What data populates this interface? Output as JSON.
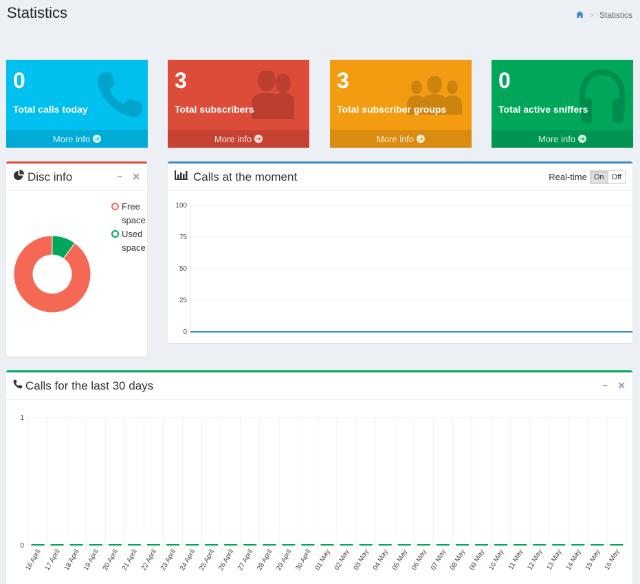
{
  "header": {
    "title": "Statistics",
    "breadcrumb": "Statistics"
  },
  "stat_boxes": [
    {
      "value": "0",
      "label": "Total calls today",
      "more": "More info",
      "color": "#00c0ef",
      "icon": "phone-icon"
    },
    {
      "value": "3",
      "label": "Total subscribers",
      "more": "More info",
      "color": "#dd4b39",
      "icon": "users-icon"
    },
    {
      "value": "3",
      "label": "Total subscriber groups",
      "more": "More info",
      "color": "#f39c12",
      "icon": "groups-icon"
    },
    {
      "value": "0",
      "label": "Total active sniffers",
      "more": "More info",
      "color": "#00a65a",
      "icon": "headphones-icon"
    }
  ],
  "disc": {
    "title": "Disc info",
    "legend": [
      {
        "label": "Free space",
        "color": "#f56954"
      },
      {
        "label": "Used space",
        "color": "#00a65a"
      }
    ],
    "free_pct": 90,
    "used_pct": 10
  },
  "realtime": {
    "title": "Calls at the moment",
    "toggle_label": "Real-time",
    "on": "On",
    "off": "Off"
  },
  "monthly": {
    "title": "Calls for the last 30 days"
  },
  "chart_data": [
    {
      "type": "line",
      "title": "Calls at the moment",
      "ylim": [
        0,
        100
      ],
      "yticks": [
        "100",
        "75",
        "50",
        "25",
        "0"
      ],
      "values": [
        0,
        0
      ],
      "color": "#3c8dbc"
    },
    {
      "type": "bar",
      "title": "Calls for the last 30 days",
      "ylim": [
        0,
        1
      ],
      "yticks": [
        "1",
        "0"
      ],
      "categories": [
        "16 April",
        "17 April",
        "18 April",
        "19 April",
        "20 April",
        "21 April",
        "22 April",
        "23 April",
        "24 April",
        "25 April",
        "26 April",
        "27 April",
        "28 April",
        "29 April",
        "30 April",
        "01 May",
        "02 May",
        "03 May",
        "04 May",
        "05 May",
        "06 May",
        "07 May",
        "08 May",
        "09 May",
        "10 May",
        "11 May",
        "12 May",
        "13 May",
        "14 May",
        "15 May",
        "16 May"
      ],
      "values": [
        0,
        0,
        0,
        0,
        0,
        0,
        0,
        0,
        0,
        0,
        0,
        0,
        0,
        0,
        0,
        0,
        0,
        0,
        0,
        0,
        0,
        0,
        0,
        0,
        0,
        0,
        0,
        0,
        0,
        0,
        0
      ],
      "color": "#00a65a"
    }
  ]
}
